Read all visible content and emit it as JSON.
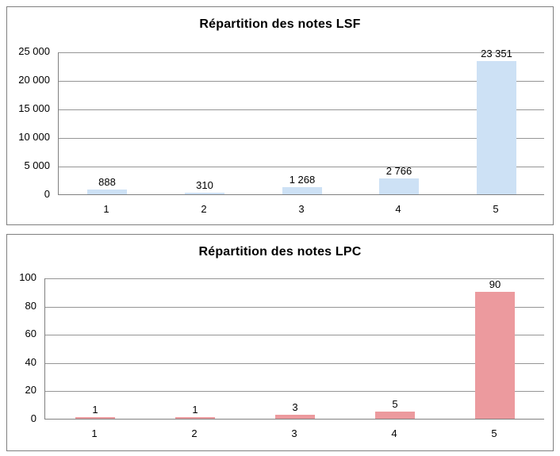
{
  "chart_data": [
    {
      "type": "bar",
      "title": "Répartition des notes LSF",
      "categories": [
        "1",
        "2",
        "3",
        "4",
        "5"
      ],
      "values": [
        888,
        310,
        1268,
        2766,
        23351
      ],
      "value_labels": [
        "888",
        "310",
        "1 268",
        "2 766",
        "23 351"
      ],
      "xlabel": "",
      "ylabel": "",
      "ylim": [
        0,
        25000
      ],
      "ytick_interval": 5000,
      "ytick_labels": [
        "0",
        "5 000",
        "10 000",
        "15 000",
        "20 000",
        "25 000"
      ],
      "grid": true,
      "legend": "none",
      "bar_color": "#cde1f5"
    },
    {
      "type": "bar",
      "title": "Répartition des notes LPC",
      "categories": [
        "1",
        "2",
        "3",
        "4",
        "5"
      ],
      "values": [
        1,
        1,
        3,
        5,
        90
      ],
      "value_labels": [
        "1",
        "1",
        "3",
        "5",
        "90"
      ],
      "xlabel": "",
      "ylabel": "",
      "ylim": [
        0,
        100
      ],
      "ytick_interval": 20,
      "ytick_labels": [
        "0",
        "20",
        "40",
        "60",
        "80",
        "100"
      ],
      "grid": true,
      "legend": "none",
      "bar_color": "#ec9a9e"
    }
  ],
  "colors": {
    "gridline": "#959595",
    "axis_line": "#808080",
    "panel_border": "#7f7f7f",
    "text": "#000000",
    "background": "#ffffff"
  }
}
